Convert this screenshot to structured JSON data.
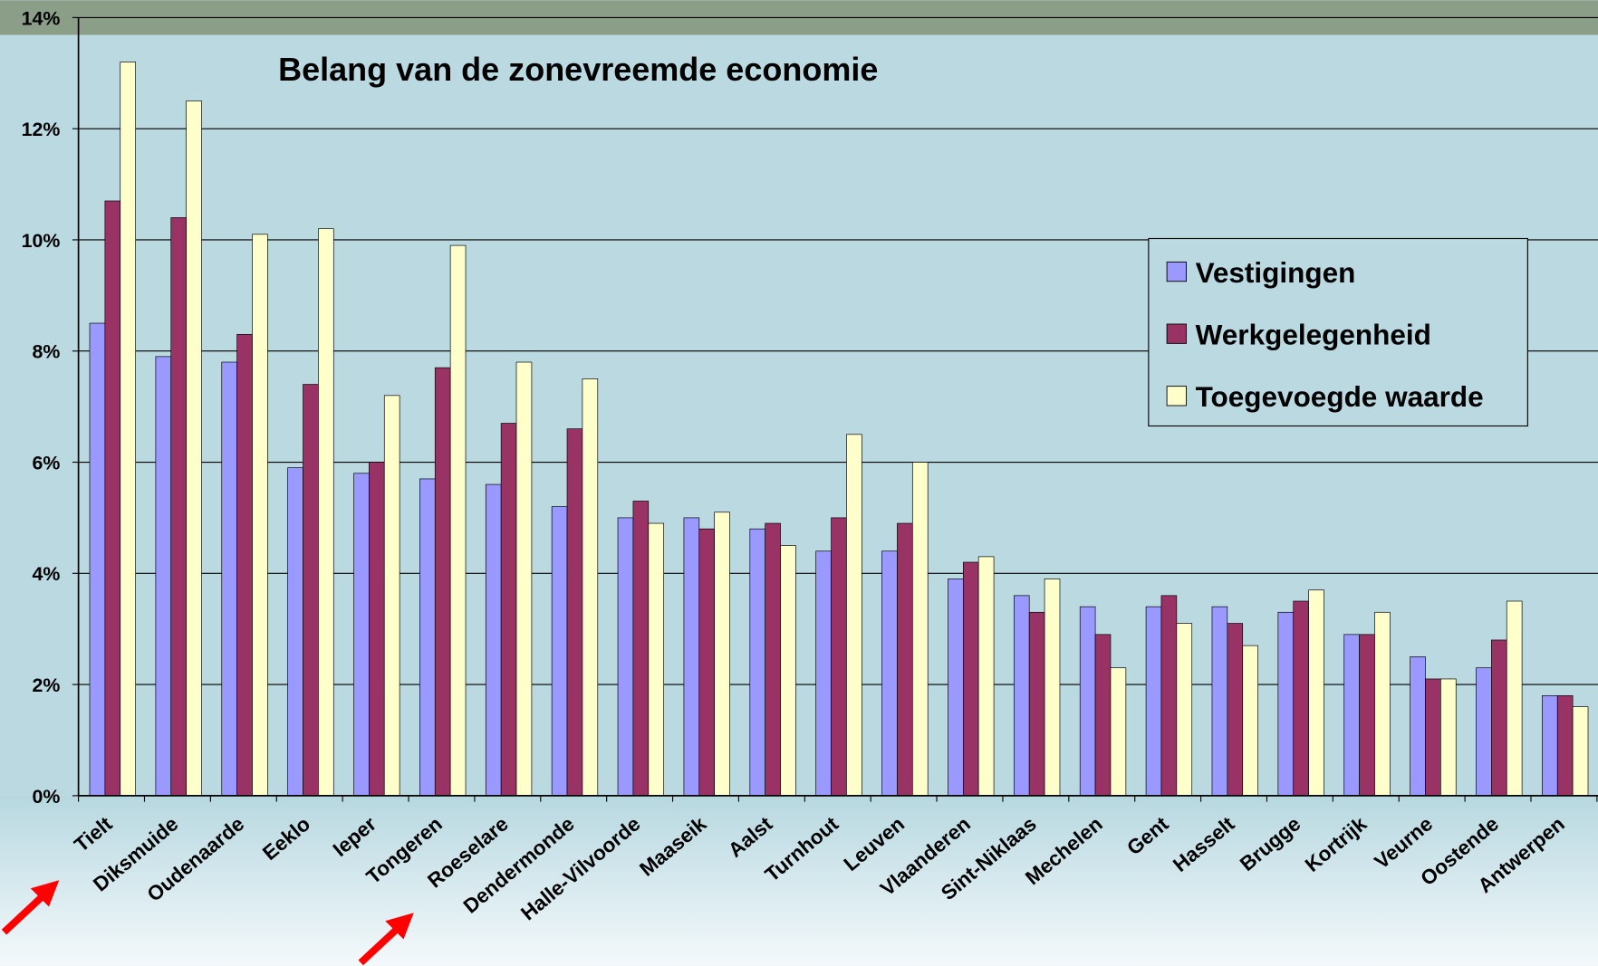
{
  "chart_data": {
    "type": "bar",
    "title": "Belang van de zonevreemde economie",
    "categories": [
      "Tielt",
      "Diksmuide",
      "Oudenaarde",
      "Eeklo",
      "Ieper",
      "Tongeren",
      "Roeselare",
      "Dendermonde",
      "Halle-Vilvoorde",
      "Maaseik",
      "Aalst",
      "Turnhout",
      "Leuven",
      "Vlaanderen",
      "Sint-Niklaas",
      "Mechelen",
      "Gent",
      "Hasselt",
      "Brugge",
      "Kortrijk",
      "Veurne",
      "Oostende",
      "Antwerpen"
    ],
    "series": [
      {
        "name": "Vestigingen",
        "color": "#9999ff",
        "values": [
          8.5,
          7.9,
          7.8,
          5.9,
          5.8,
          5.7,
          5.6,
          5.2,
          5.0,
          5.0,
          4.8,
          4.4,
          4.4,
          3.9,
          3.6,
          3.4,
          3.4,
          3.4,
          3.3,
          2.9,
          2.5,
          2.3,
          1.8
        ]
      },
      {
        "name": "Werkgelegenheid",
        "color": "#993366",
        "values": [
          10.7,
          10.4,
          8.3,
          7.4,
          6.0,
          7.7,
          6.7,
          6.6,
          5.3,
          4.8,
          4.9,
          5.0,
          4.9,
          4.2,
          3.3,
          2.9,
          3.6,
          3.1,
          3.5,
          2.9,
          2.1,
          2.8,
          1.8
        ]
      },
      {
        "name": "Toegevoegde waarde",
        "color": "#ffffcc",
        "values": [
          13.2,
          12.5,
          10.1,
          10.2,
          7.2,
          9.9,
          7.8,
          7.5,
          4.9,
          5.1,
          4.5,
          6.5,
          6.0,
          4.3,
          3.9,
          2.3,
          3.1,
          2.7,
          3.7,
          3.3,
          2.1,
          3.5,
          1.6
        ]
      }
    ],
    "ylim": [
      0,
      14
    ],
    "yticks": [
      {
        "value": 0,
        "label": "0%"
      },
      {
        "value": 2,
        "label": "2%"
      },
      {
        "value": 4,
        "label": "4%"
      },
      {
        "value": 6,
        "label": "6%"
      },
      {
        "value": 8,
        "label": "8%"
      },
      {
        "value": 10,
        "label": "10%"
      },
      {
        "value": 12,
        "label": "12%"
      },
      {
        "value": 14,
        "label": "14%"
      }
    ],
    "grid": true,
    "legend": "right"
  }
}
